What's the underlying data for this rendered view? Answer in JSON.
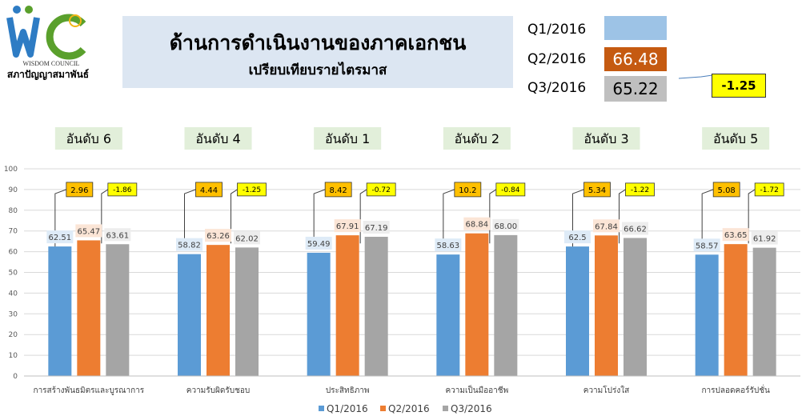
{
  "logo": {
    "org_en": "WISDOM COUNCIL",
    "org_th": "สภาปัญญาสมาพันธ์",
    "colors": [
      "#2e7cc4",
      "#5aa02c",
      "#f2b616"
    ]
  },
  "title": {
    "main": "ด้านการดำเนินงานของภาคเอกชน",
    "sub": "เปรียบเทียบรายไตรมาส"
  },
  "quarter_summary": [
    {
      "label": "Q1/2016",
      "value": "",
      "color": "#9dc3e6",
      "text_color": "#000000"
    },
    {
      "label": "Q2/2016",
      "value": "66.48",
      "color": "#c55a11",
      "text_color": "#ffffff"
    },
    {
      "label": "Q3/2016",
      "value": "65.22",
      "color": "#bfbfbf",
      "text_color": "#000000"
    }
  ],
  "change": "-1.25",
  "chart_data": {
    "type": "bar",
    "categories": [
      "การสร้างพันธมิตรและบูรณาการ",
      "ความรับผิดรับชอบ",
      "ประสิทธิภาพ",
      "ความเป็นมืออาชีพ",
      "ความโปร่งใส",
      "การปลอดคอร์รัปชั่น"
    ],
    "series": [
      {
        "name": "Q1/2016",
        "color": "#5b9bd5",
        "labels": [
          "62.51",
          "58.82",
          "59.49",
          "58.63",
          "62.5",
          "58.57"
        ],
        "values": [
          62.51,
          58.82,
          59.49,
          58.63,
          62.5,
          58.57
        ]
      },
      {
        "name": "Q2/2016",
        "color": "#ed7d31",
        "labels": [
          "65.47",
          "63.26",
          "67.91",
          "68.84",
          "67.84",
          "63.65"
        ],
        "values": [
          65.47,
          63.26,
          67.91,
          68.84,
          67.84,
          63.65
        ]
      },
      {
        "name": "Q3/2016",
        "color": "#a5a5a5",
        "labels": [
          "63.61",
          "62.02",
          "67.19",
          "68.00",
          "66.62",
          "61.92"
        ],
        "values": [
          63.61,
          62.02,
          67.19,
          68.0,
          66.62,
          61.92
        ]
      }
    ],
    "ranks": [
      "อันดับ 6",
      "อันดับ 4",
      "อันดับ 1",
      "อันดับ 2",
      "อันดับ 3",
      "อันดับ 5"
    ],
    "q2_minus_q1": [
      "2.96",
      "4.44",
      "8.42",
      "10.2",
      "5.34",
      "5.08"
    ],
    "q3_minus_q2": [
      "-1.86",
      "-1.25",
      "-0.72",
      "-0.84",
      "-1.22",
      "-1.72"
    ],
    "ylim": [
      0,
      100
    ],
    "yticks": [
      0,
      10,
      20,
      30,
      40,
      50,
      60,
      70,
      80,
      90,
      100
    ],
    "grid": true,
    "legend": "bottom"
  }
}
